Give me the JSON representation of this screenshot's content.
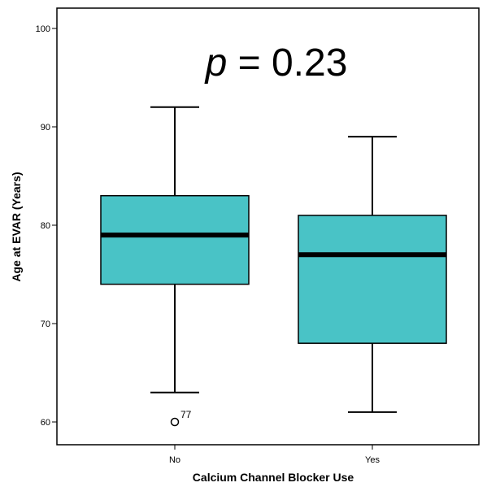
{
  "chart_data": {
    "type": "boxplot",
    "xlabel": "Calcium Channel Blocker Use",
    "ylabel": "Age at EVAR (Years)",
    "ylim": [
      58,
      102
    ],
    "yticks": [
      60,
      70,
      80,
      90,
      100
    ],
    "categories": [
      "No",
      "Yes"
    ],
    "annotation": {
      "prefix": "p",
      "text": " = 0.23"
    },
    "box_color": "#49c3c6",
    "boxes": [
      {
        "category": "No",
        "whisker_low": 63,
        "q1": 74,
        "median": 79,
        "q3": 83,
        "whisker_high": 92,
        "outliers": [
          {
            "value": 60,
            "label": "77"
          }
        ]
      },
      {
        "category": "Yes",
        "whisker_low": 61,
        "q1": 68,
        "median": 77,
        "q3": 81,
        "whisker_high": 89,
        "outliers": []
      }
    ],
    "grid": false,
    "legend": "none"
  }
}
